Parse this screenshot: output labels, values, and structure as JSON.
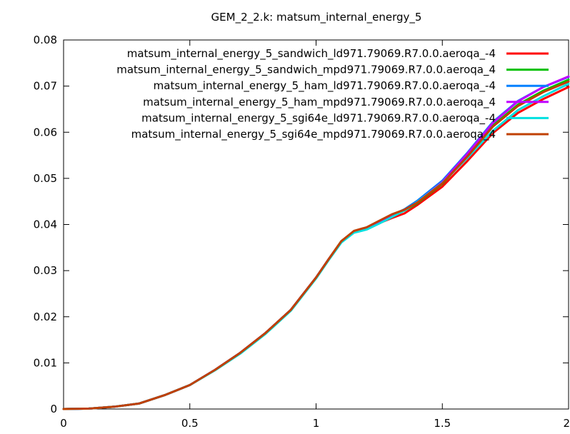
{
  "chart_data": {
    "type": "line",
    "title": "GEM_2_2.k: matsum_internal_energy_5",
    "xlabel": "",
    "ylabel": "",
    "xlim": [
      0,
      2
    ],
    "ylim": [
      0,
      0.08
    ],
    "xticks": [
      "0",
      "0.5",
      "1",
      "1.5",
      "2"
    ],
    "yticks": [
      "0",
      "0.01",
      "0.02",
      "0.03",
      "0.04",
      "0.05",
      "0.06",
      "0.07",
      "0.08"
    ],
    "xtick_values": [
      0,
      0.5,
      1,
      1.5,
      2
    ],
    "ytick_values": [
      0,
      0.01,
      0.02,
      0.03,
      0.04,
      0.05,
      0.06,
      0.07,
      0.08
    ],
    "grid": false,
    "legend_position": "top-right",
    "x": [
      0,
      0.1,
      0.2,
      0.3,
      0.4,
      0.5,
      0.6,
      0.7,
      0.8,
      0.9,
      1.0,
      1.05,
      1.1,
      1.15,
      1.2,
      1.25,
      1.3,
      1.35,
      1.4,
      1.5,
      1.6,
      1.7,
      1.8,
      1.9,
      2.0
    ],
    "series": [
      {
        "name": "matsum_internal_energy_5_sandwich_ld971.79069.R7.0.0.aeroqa_-4",
        "color": "#ff0000",
        "values": [
          0,
          0.0001,
          0.0005,
          0.0012,
          0.003,
          0.0052,
          0.0085,
          0.0122,
          0.0165,
          0.0215,
          0.0285,
          0.0325,
          0.0364,
          0.0385,
          0.0392,
          0.0403,
          0.0414,
          0.0424,
          0.0442,
          0.0482,
          0.0538,
          0.0598,
          0.0642,
          0.0672,
          0.0698
        ]
      },
      {
        "name": "matsum_internal_energy_5_sandwich_mpd971.79069.R7.0.0.aeroqa_4",
        "color": "#00c000",
        "values": [
          0,
          0.0001,
          0.0005,
          0.0012,
          0.003,
          0.0052,
          0.0085,
          0.0122,
          0.0165,
          0.0215,
          0.0285,
          0.0325,
          0.0364,
          0.0385,
          0.0393,
          0.0406,
          0.0419,
          0.043,
          0.0446,
          0.0488,
          0.0548,
          0.0614,
          0.066,
          0.069,
          0.0714
        ]
      },
      {
        "name": "matsum_internal_energy_5_ham_ld971.79069.R7.0.0.aeroqa_-4",
        "color": "#0080ff",
        "values": [
          0,
          0.0001,
          0.0005,
          0.0012,
          0.003,
          0.0052,
          0.0085,
          0.0122,
          0.0165,
          0.0215,
          0.0285,
          0.0325,
          0.0362,
          0.0383,
          0.039,
          0.0405,
          0.042,
          0.0433,
          0.0451,
          0.0495,
          0.0556,
          0.0622,
          0.0668,
          0.0698,
          0.072
        ]
      },
      {
        "name": "matsum_internal_energy_5_ham_mpd971.79069.R7.0.0.aeroqa_4",
        "color": "#c000ff",
        "values": [
          0,
          0.0001,
          0.0005,
          0.0012,
          0.003,
          0.0052,
          0.0085,
          0.0122,
          0.0165,
          0.0215,
          0.0285,
          0.0325,
          0.0363,
          0.0384,
          0.0391,
          0.0405,
          0.0419,
          0.0431,
          0.0448,
          0.0492,
          0.0554,
          0.062,
          0.0667,
          0.0698,
          0.0721
        ]
      },
      {
        "name": "matsum_internal_energy_5_sgi64e_ld971.79069.R7.0.0.aeroqa_-4",
        "color": "#00e0e0",
        "values": [
          0,
          0.0001,
          0.0005,
          0.0012,
          0.003,
          0.0052,
          0.0084,
          0.012,
          0.0163,
          0.0213,
          0.0283,
          0.0323,
          0.0361,
          0.0382,
          0.0389,
          0.0402,
          0.0416,
          0.043,
          0.0448,
          0.049,
          0.0545,
          0.0603,
          0.0648,
          0.0678,
          0.0705
        ]
      },
      {
        "name": "matsum_internal_energy_5_sgi64e_mpd971.79069.R7.0.0.aeroqa_4",
        "color": "#c04000",
        "values": [
          0,
          0.0001,
          0.0005,
          0.0012,
          0.003,
          0.0052,
          0.0085,
          0.0122,
          0.0165,
          0.0215,
          0.0285,
          0.0325,
          0.0364,
          0.0386,
          0.0394,
          0.0408,
          0.0422,
          0.0432,
          0.0447,
          0.0489,
          0.0548,
          0.0612,
          0.0657,
          0.0687,
          0.071
        ]
      }
    ]
  }
}
